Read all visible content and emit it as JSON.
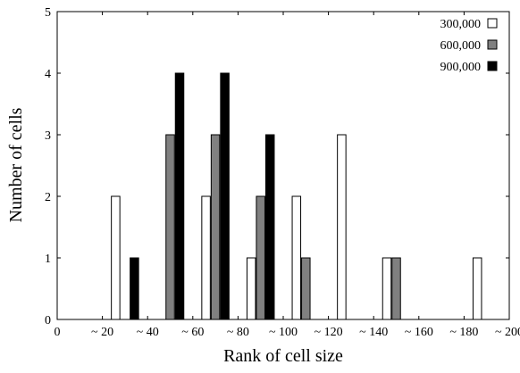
{
  "chart_data": {
    "type": "bar",
    "title": "",
    "xlabel": "Rank of cell size",
    "ylabel": "Number of cells",
    "ylim": [
      0,
      5
    ],
    "yticks": [
      "0",
      "1",
      "2",
      "3",
      "4",
      "5"
    ],
    "xticks": [
      "0",
      "~ 20",
      "~ 40",
      "~ 60",
      "~ 80",
      "~ 100",
      "~ 120",
      "~ 140",
      "~ 160",
      "~ 180",
      "~ 200"
    ],
    "legend_position": "top-right",
    "categories": [
      "0 ~ 20",
      "~ 40",
      "~ 60",
      "~ 80",
      "~ 100",
      "~ 120",
      "~ 140",
      "~ 160",
      "~ 180",
      "~ 200"
    ],
    "series": [
      {
        "name": "300,000",
        "color": "#ffffff",
        "values": [
          0,
          2,
          0,
          2,
          1,
          2,
          3,
          1,
          0,
          1
        ]
      },
      {
        "name": "600,000",
        "color": "#808080",
        "values": [
          0,
          0,
          3,
          3,
          2,
          1,
          0,
          1,
          0,
          0
        ]
      },
      {
        "name": "900,000",
        "color": "#000000",
        "values": [
          0,
          1,
          4,
          4,
          3,
          0,
          0,
          0,
          0,
          0
        ]
      }
    ]
  }
}
